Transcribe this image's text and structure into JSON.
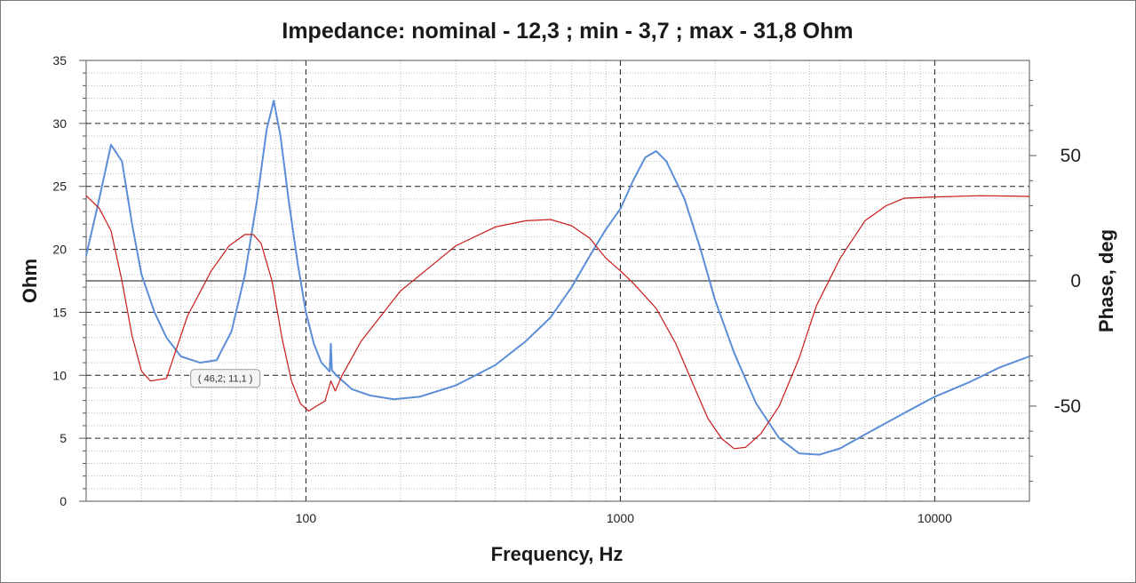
{
  "chart_data": {
    "type": "line",
    "title": "Impedance: nominal - 12,3 ; min - 3,7 ; max - 31,8 Ohm",
    "xlabel": "Frequency, Hz",
    "ylabel": "Ohm",
    "y2label": "Phase, deg",
    "xscale": "log",
    "xlim": [
      20,
      20000
    ],
    "ylim": [
      0,
      35
    ],
    "y2lim": [
      -88,
      88
    ],
    "xticks": [
      {
        "v": 100,
        "label": "100"
      },
      {
        "v": 1000,
        "label": "1000"
      },
      {
        "v": 10000,
        "label": "10000"
      }
    ],
    "yticks": [
      {
        "v": 0,
        "label": "0"
      },
      {
        "v": 5,
        "label": "5"
      },
      {
        "v": 10,
        "label": "10"
      },
      {
        "v": 15,
        "label": "15"
      },
      {
        "v": 20,
        "label": "20"
      },
      {
        "v": 25,
        "label": "25"
      },
      {
        "v": 30,
        "label": "30"
      },
      {
        "v": 35,
        "label": "35"
      }
    ],
    "y2ticks": [
      {
        "v": 50,
        "label": "50"
      },
      {
        "v": 0,
        "label": "0"
      },
      {
        "v": -50,
        "label": "-50"
      }
    ],
    "grid": true,
    "annotation": {
      "label": "( 46,2; 11,1 )",
      "x": 46.2,
      "y": 11.1
    },
    "series": [
      {
        "axis": "left",
        "color": "#5b8ed6",
        "points": [
          [
            20,
            19.5
          ],
          [
            22,
            24
          ],
          [
            24,
            28.3
          ],
          [
            26,
            27
          ],
          [
            28,
            22
          ],
          [
            30,
            18
          ],
          [
            33,
            15
          ],
          [
            36,
            13
          ],
          [
            40,
            11.5
          ],
          [
            46,
            11
          ],
          [
            52,
            11.2
          ],
          [
            58,
            13.5
          ],
          [
            64,
            18
          ],
          [
            70,
            24
          ],
          [
            75,
            29.5
          ],
          [
            79,
            31.8
          ],
          [
            83,
            29
          ],
          [
            88,
            24
          ],
          [
            94,
            19
          ],
          [
            100,
            15
          ],
          [
            106,
            12.5
          ],
          [
            112,
            11
          ],
          [
            117,
            10.5
          ],
          [
            119,
            10.3
          ],
          [
            120,
            12.5
          ],
          [
            121,
            10.4
          ],
          [
            125,
            10
          ],
          [
            140,
            8.9
          ],
          [
            160,
            8.4
          ],
          [
            190,
            8.1
          ],
          [
            230,
            8.3
          ],
          [
            300,
            9.2
          ],
          [
            400,
            10.8
          ],
          [
            500,
            12.7
          ],
          [
            600,
            14.6
          ],
          [
            700,
            17
          ],
          [
            800,
            19.5
          ],
          [
            900,
            21.6
          ],
          [
            1000,
            23.2
          ],
          [
            1100,
            25.5
          ],
          [
            1200,
            27.3
          ],
          [
            1300,
            27.8
          ],
          [
            1400,
            27
          ],
          [
            1600,
            24
          ],
          [
            1800,
            20
          ],
          [
            2000,
            16
          ],
          [
            2300,
            11.8
          ],
          [
            2700,
            7.8
          ],
          [
            3200,
            5
          ],
          [
            3700,
            3.8
          ],
          [
            4300,
            3.7
          ],
          [
            5000,
            4.2
          ],
          [
            6000,
            5.3
          ],
          [
            8000,
            7
          ],
          [
            10000,
            8.3
          ],
          [
            13000,
            9.5
          ],
          [
            16000,
            10.6
          ],
          [
            20000,
            11.5
          ]
        ]
      },
      {
        "axis": "right",
        "color": "#c91a1a",
        "points": [
          [
            20,
            34
          ],
          [
            22,
            29
          ],
          [
            24,
            20
          ],
          [
            26,
            0
          ],
          [
            28,
            -22
          ],
          [
            30,
            -36
          ],
          [
            32,
            -40
          ],
          [
            36,
            -39
          ],
          [
            42,
            -14
          ],
          [
            50,
            4
          ],
          [
            57,
            14
          ],
          [
            64,
            18.5
          ],
          [
            68,
            18.5
          ],
          [
            72,
            15
          ],
          [
            78,
            0
          ],
          [
            84,
            -23
          ],
          [
            90,
            -40
          ],
          [
            96,
            -49
          ],
          [
            102,
            -52
          ],
          [
            108,
            -50
          ],
          [
            115,
            -48
          ],
          [
            120,
            -40
          ],
          [
            124,
            -44
          ],
          [
            130,
            -38
          ],
          [
            150,
            -24
          ],
          [
            200,
            -4
          ],
          [
            300,
            14
          ],
          [
            400,
            21.5
          ],
          [
            500,
            24
          ],
          [
            600,
            24.5
          ],
          [
            700,
            22
          ],
          [
            800,
            17
          ],
          [
            900,
            9
          ],
          [
            1000,
            4
          ],
          [
            1100,
            -1
          ],
          [
            1300,
            -11
          ],
          [
            1500,
            -25
          ],
          [
            1700,
            -41
          ],
          [
            1900,
            -55
          ],
          [
            2100,
            -63
          ],
          [
            2300,
            -67
          ],
          [
            2500,
            -66.5
          ],
          [
            2800,
            -61
          ],
          [
            3200,
            -50
          ],
          [
            3700,
            -31
          ],
          [
            4200,
            -10
          ],
          [
            5000,
            9
          ],
          [
            6000,
            24
          ],
          [
            7000,
            30
          ],
          [
            8000,
            33
          ],
          [
            10000,
            33.5
          ],
          [
            14000,
            34
          ],
          [
            20000,
            33.7
          ]
        ]
      }
    ]
  }
}
